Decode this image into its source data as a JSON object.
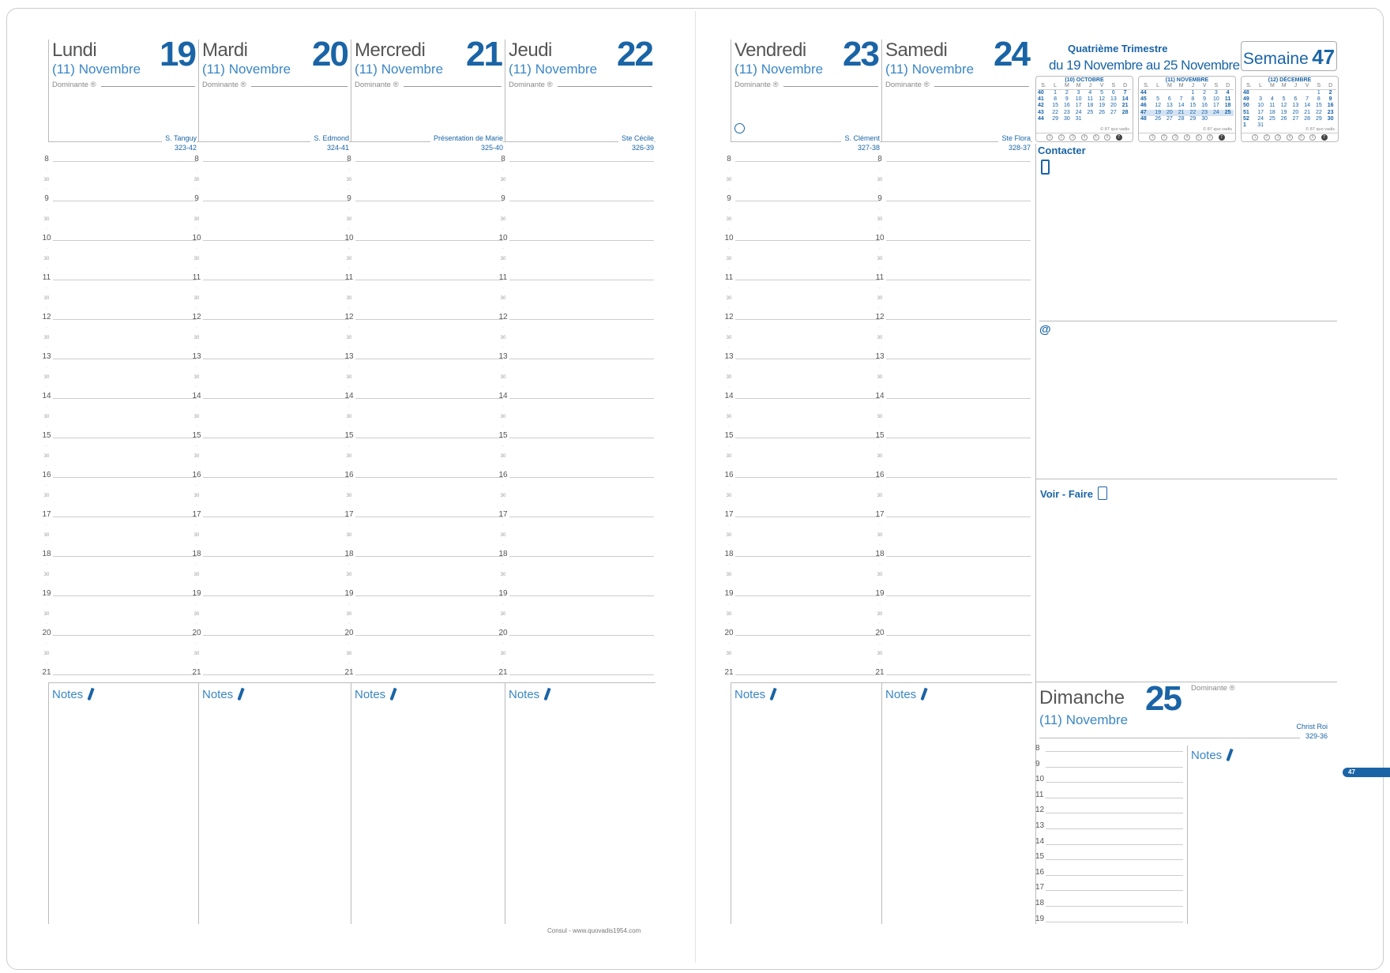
{
  "days": [
    {
      "name": "Lundi",
      "month": "(11) Novembre",
      "number": "19",
      "dominante": "Dominante ®",
      "saint": "S. Tanguy",
      "day_code": "323-42",
      "notes": "Notes"
    },
    {
      "name": "Mardi",
      "month": "(11) Novembre",
      "number": "20",
      "dominante": "Dominante ®",
      "saint": "S. Edmond",
      "day_code": "324-41",
      "notes": "Notes"
    },
    {
      "name": "Mercredi",
      "month": "(11) Novembre",
      "number": "21",
      "dominante": "Dominante ®",
      "saint": "Présentation de Marie",
      "day_code": "325-40",
      "notes": "Notes"
    },
    {
      "name": "Jeudi",
      "month": "(11) Novembre",
      "number": "22",
      "dominante": "Dominante ®",
      "saint": "Ste Cécile",
      "day_code": "326-39",
      "notes": "Notes"
    },
    {
      "name": "Vendredi",
      "month": "(11) Novembre",
      "number": "23",
      "dominante": "Dominante ®",
      "saint": "S. Clément",
      "day_code": "327-38",
      "notes": "Notes",
      "moon": "full-moon-outline-icon"
    },
    {
      "name": "Samedi",
      "month": "(11) Novembre",
      "number": "24",
      "dominante": "Dominante ®",
      "saint": "Ste Flora",
      "day_code": "328-37",
      "notes": "Notes"
    }
  ],
  "hours": [
    "8",
    "9",
    "10",
    "11",
    "12",
    "13",
    "14",
    "15",
    "16",
    "17",
    "18",
    "19",
    "20",
    "21"
  ],
  "half_label": "30",
  "sidebar": {
    "quarter": "Quatrième Trimestre",
    "range": "du 19 Novembre au 25 Novembre",
    "week_label": "Semaine",
    "week_number": "47",
    "contact": "Contacter",
    "phone_icon": "phone-icon",
    "at": "@",
    "todo": "Voir - Faire",
    "todo_icon": "notepad-icon"
  },
  "mini_calendars": [
    {
      "title": "(10) OCTOBRE",
      "header": [
        "S.",
        "L",
        "M",
        "M",
        "J",
        "V",
        "S",
        "D"
      ],
      "rows": [
        [
          "40",
          "1",
          "2",
          "3",
          "4",
          "5",
          "6",
          "7"
        ],
        [
          "41",
          "8",
          "9",
          "10",
          "11",
          "12",
          "13",
          "14"
        ],
        [
          "42",
          "15",
          "16",
          "17",
          "18",
          "19",
          "20",
          "21"
        ],
        [
          "43",
          "22",
          "23",
          "24",
          "25",
          "26",
          "27",
          "28"
        ],
        [
          "44",
          "29",
          "30",
          "31",
          "",
          "",
          "",
          ""
        ]
      ],
      "footer": "© 87 quo vadis",
      "moon_days": [
        "1",
        "2",
        "3",
        "4",
        "5",
        "6",
        "7"
      ]
    },
    {
      "title": "(11) NOVEMBRE",
      "header": [
        "S.",
        "L",
        "M",
        "M",
        "J",
        "V",
        "S",
        "D"
      ],
      "rows": [
        [
          "44",
          "",
          "",
          "",
          "1",
          "2",
          "3",
          "4"
        ],
        [
          "45",
          "5",
          "6",
          "7",
          "8",
          "9",
          "10",
          "11"
        ],
        [
          "46",
          "12",
          "13",
          "14",
          "15",
          "16",
          "17",
          "18"
        ],
        [
          "47",
          "19",
          "20",
          "21",
          "22",
          "23",
          "24",
          "25"
        ],
        [
          "48",
          "26",
          "27",
          "28",
          "29",
          "30",
          "",
          ""
        ]
      ],
      "footer": "© 87 quo vadis",
      "current_week": "47",
      "moon_days": [
        "1",
        "2",
        "3",
        "4",
        "5",
        "6",
        "7"
      ]
    },
    {
      "title": "(12) DÉCEMBRE",
      "header": [
        "S.",
        "L",
        "M",
        "M",
        "J",
        "V",
        "S",
        "D"
      ],
      "rows": [
        [
          "48",
          "",
          "",
          "",
          "",
          "",
          "1",
          "2"
        ],
        [
          "49",
          "3",
          "4",
          "5",
          "6",
          "7",
          "8",
          "9"
        ],
        [
          "50",
          "10",
          "11",
          "12",
          "13",
          "14",
          "15",
          "16"
        ],
        [
          "51",
          "17",
          "18",
          "19",
          "20",
          "21",
          "22",
          "23"
        ],
        [
          "52",
          "24",
          "25",
          "26",
          "27",
          "28",
          "29",
          "30"
        ],
        [
          "1",
          "31",
          "",
          "",
          "",
          "",
          "",
          ""
        ]
      ],
      "footer": "© 87 quo vadis",
      "moon_days": [
        "1",
        "2",
        "3",
        "4",
        "5",
        "6",
        "7"
      ]
    }
  ],
  "sunday": {
    "name": "Dimanche",
    "month": "(11) Novembre",
    "number": "25",
    "dominante": "Dominante ®",
    "saint": "Christ Roi",
    "day_code": "329-36",
    "notes": "Notes",
    "hours": [
      "8",
      "9",
      "10",
      "11",
      "12",
      "13",
      "14",
      "15",
      "16",
      "17",
      "18",
      "19"
    ]
  },
  "footer": "Consul - www.quovadis1954.com",
  "week_tab": "47",
  "colors": {
    "blue": "#1a64a6",
    "light_blue": "#3a86c4",
    "line": "#cccccc"
  }
}
